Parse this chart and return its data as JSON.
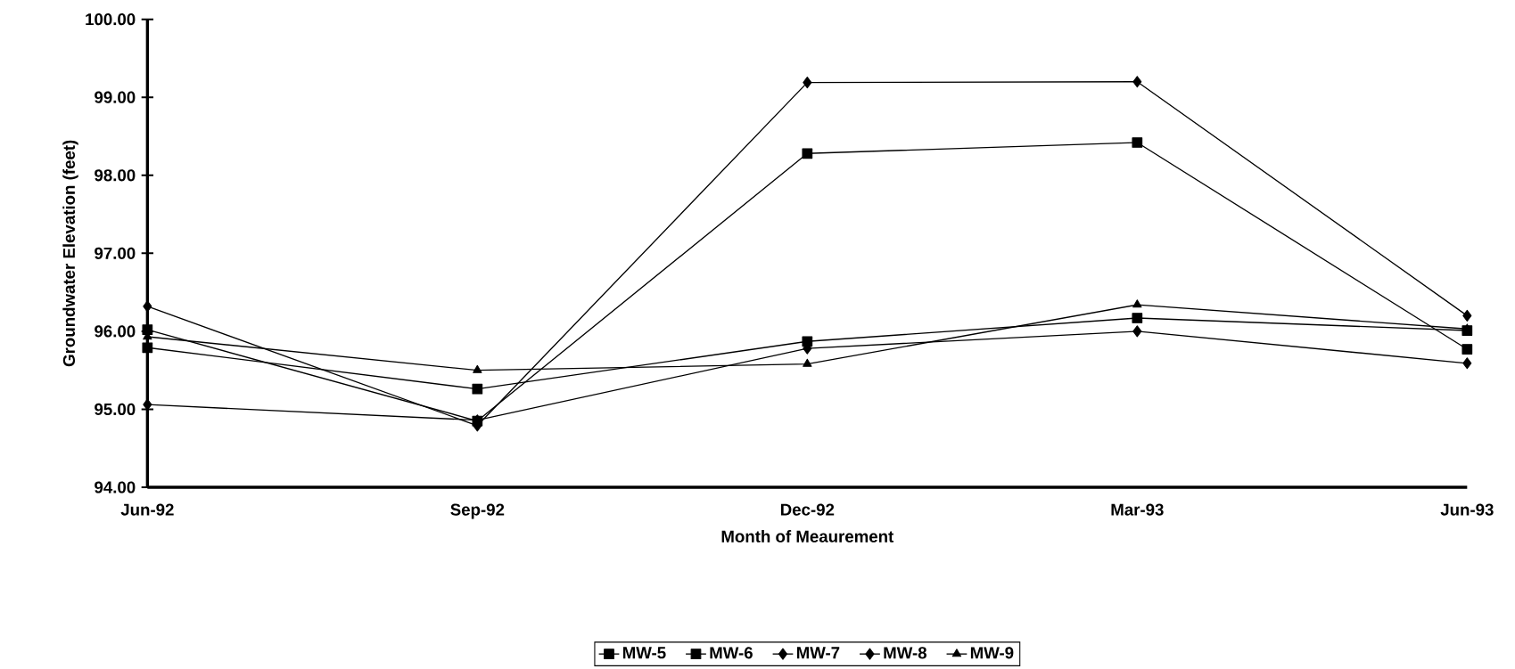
{
  "chart_data": {
    "type": "line",
    "xlabel": "Month of Meaurement",
    "ylabel": "Groundwater Elevation (feet)",
    "categories": [
      "Jun-92",
      "Sep-92",
      "Dec-92",
      "Mar-93",
      "Jun-93"
    ],
    "series": [
      {
        "name": "MW-5",
        "color": "#000000",
        "marker": "square",
        "values": [
          95.79,
          95.26,
          95.87,
          96.17,
          96.01
        ]
      },
      {
        "name": "MW-6",
        "color": "#000000",
        "marker": "square",
        "values": [
          96.02,
          94.85,
          98.28,
          98.42,
          95.77
        ]
      },
      {
        "name": "MW-7",
        "color": "#000000",
        "marker": "diamond",
        "values": [
          96.32,
          94.79,
          99.19,
          99.2,
          96.2
        ]
      },
      {
        "name": "MW-8",
        "color": "#000000",
        "marker": "diamond",
        "values": [
          95.06,
          94.86,
          95.78,
          96.0,
          95.59
        ]
      },
      {
        "name": "MW-9",
        "color": "#000000",
        "marker": "triangle",
        "values": [
          95.93,
          95.5,
          95.58,
          96.34,
          96.03
        ]
      }
    ],
    "ylim": [
      94,
      100
    ],
    "yticks": [
      {
        "value": 94,
        "label": "94.00"
      },
      {
        "value": 95,
        "label": "95.00"
      },
      {
        "value": 96,
        "label": "96.00"
      },
      {
        "value": 97,
        "label": "97.00"
      },
      {
        "value": 98,
        "label": "98.00"
      },
      {
        "value": 99,
        "label": "99.00"
      },
      {
        "value": 100,
        "label": "100.00"
      }
    ],
    "grid": false,
    "legend": "bottom",
    "line_style": "solid"
  }
}
